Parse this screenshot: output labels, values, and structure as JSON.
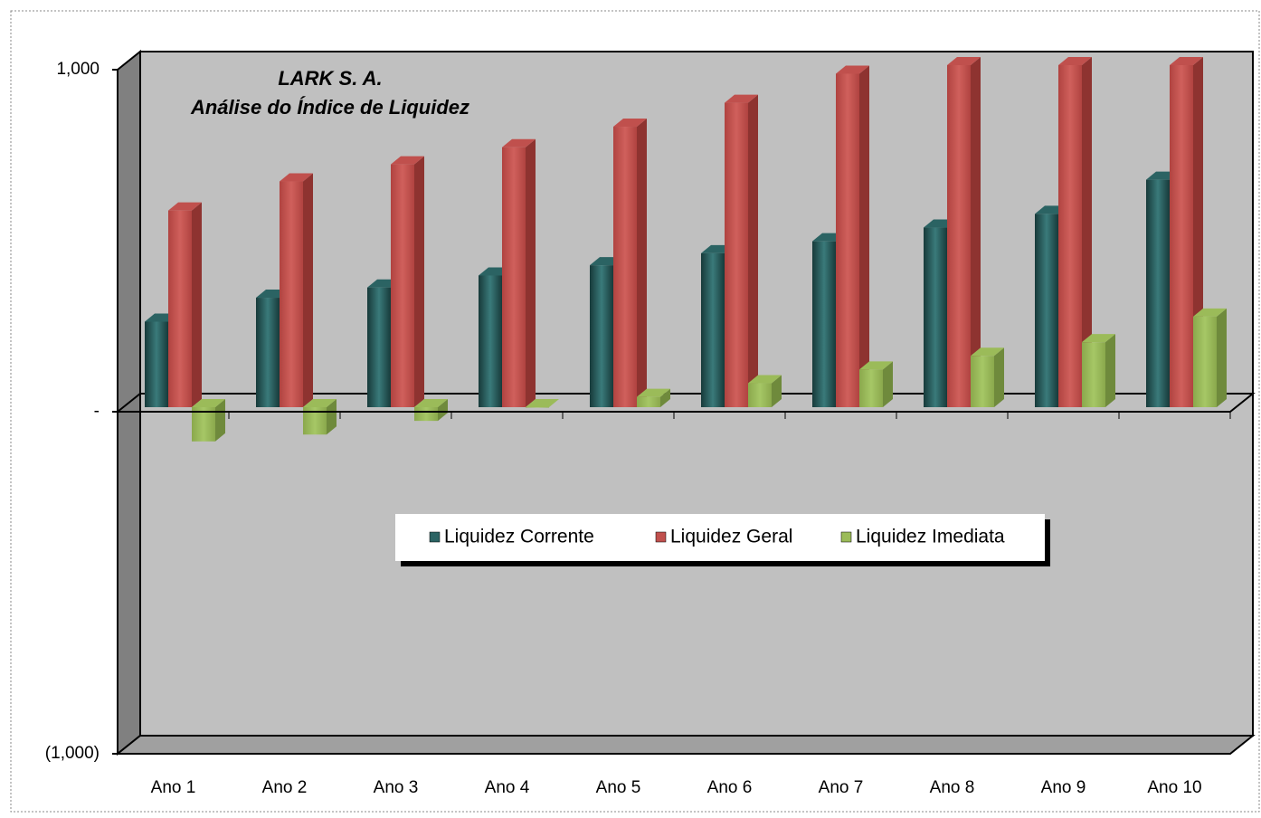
{
  "chart_data": {
    "type": "bar3d",
    "title": "LARK S. A.",
    "subtitle": "Análise do Índice de Liquidez",
    "categories": [
      "Ano 1",
      "Ano 2",
      "Ano 3",
      "Ano 4",
      "Ano 5",
      "Ano 6",
      "Ano 7",
      "Ano 8",
      "Ano 9",
      "Ano 10"
    ],
    "series": [
      {
        "name": "Liquidez Corrente",
        "color": "#2b6363",
        "values": [
          250,
          320,
          350,
          385,
          415,
          450,
          485,
          525,
          565,
          665
        ]
      },
      {
        "name": "Liquidez Geral",
        "color": "#c0504d",
        "values": [
          575,
          660,
          710,
          760,
          820,
          890,
          975,
          1000,
          1000,
          1000
        ]
      },
      {
        "name": "Liquidez Imediata",
        "color": "#9bbb59",
        "values": [
          -100,
          -80,
          -40,
          0,
          30,
          70,
          110,
          150,
          190,
          265
        ]
      }
    ],
    "ylim": [
      -1000,
      1000
    ],
    "yticks": [
      {
        "value": -1000,
        "label": "(1,000)"
      },
      {
        "value": 0,
        "label": "-"
      },
      {
        "value": 1000,
        "label": "1,000"
      }
    ],
    "legend": "center"
  }
}
